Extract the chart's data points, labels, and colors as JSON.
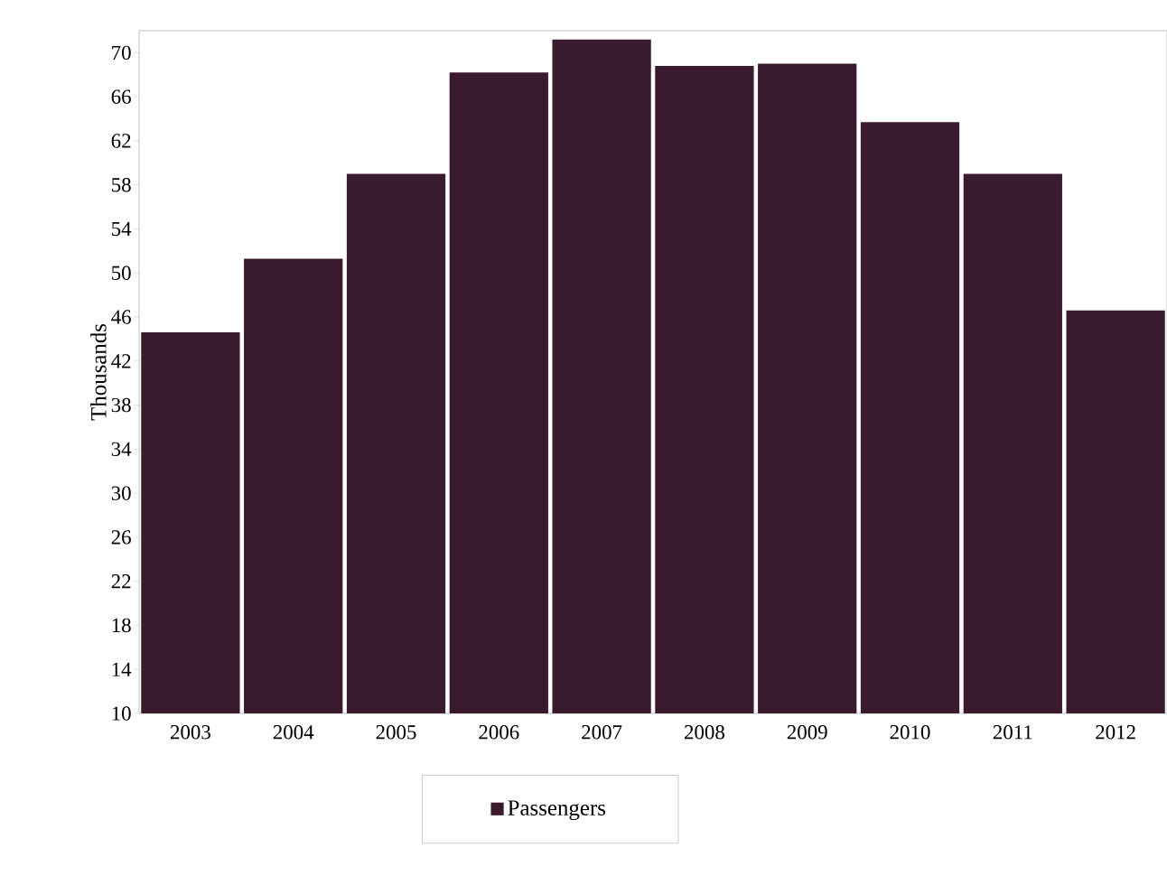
{
  "chart_data": {
    "type": "bar",
    "ylabel": "Thousands",
    "categories": [
      "2003",
      "2004",
      "2005",
      "2006",
      "2007",
      "2008",
      "2009",
      "2010",
      "2011",
      "2012"
    ],
    "series": [
      {
        "name": "Passengers",
        "color": "#3a1a2e",
        "values": [
          44.6,
          51.3,
          59.0,
          68.2,
          71.2,
          68.8,
          69.0,
          63.7,
          59.0,
          46.6
        ]
      }
    ],
    "ylim": [
      10,
      72
    ],
    "yticks": [
      10,
      14,
      18,
      22,
      26,
      30,
      34,
      38,
      42,
      46,
      50,
      54,
      58,
      62,
      66,
      70
    ],
    "legend": "bottom"
  }
}
